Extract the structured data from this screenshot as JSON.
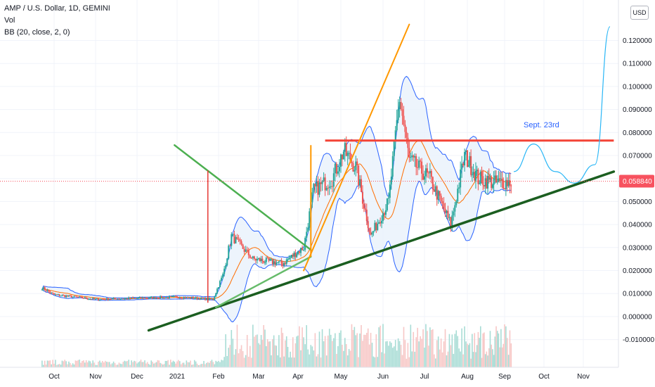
{
  "legend": {
    "symbol": "AMP / U.S. Dollar, 1D, GEMINI",
    "vol": "Vol",
    "bb": "BB (20, close, 2, 0)"
  },
  "scale_button": "USD",
  "current_price": "0.058840",
  "colors": {
    "up": "#26a69a",
    "down": "#ef5350",
    "bb_band": "#2962ff",
    "bb_basis": "#ff6d00",
    "bb_fill": "#e8f1fb",
    "red_line": "#f44336",
    "orange_line": "#ff9800",
    "green_line": "#4caf50",
    "dark_green": "#1b5e20",
    "projection": "#29b6f6",
    "price_tag": "#f7525f"
  },
  "chart_data": {
    "type": "candlestick",
    "y_ticks": [
      "0.120000",
      "0.110000",
      "0.100000",
      "0.090000",
      "0.080000",
      "0.070000",
      "0.060000",
      "0.050000",
      "0.040000",
      "0.030000",
      "0.020000",
      "0.010000",
      "0.000000",
      "-0.010000"
    ],
    "y_tick_values": [
      0.12,
      0.11,
      0.1,
      0.09,
      0.08,
      0.07,
      0.06,
      0.05,
      0.04,
      0.03,
      0.02,
      0.01,
      0.0,
      -0.01
    ],
    "x_ticks": [
      "Oct",
      "Nov",
      "Dec",
      "2021",
      "Feb",
      "Mar",
      "Apr",
      "May",
      "Jun",
      "Jul",
      "Aug",
      "Sep",
      "Oct",
      "Nov"
    ],
    "annotation": "Sept. 23rd",
    "ohlc_anchors": [
      {
        "date": "2020-09-22",
        "close": 0.0125
      },
      {
        "date": "2020-10-01",
        "close": 0.0095
      },
      {
        "date": "2020-11-01",
        "close": 0.0075
      },
      {
        "date": "2020-12-01",
        "close": 0.008
      },
      {
        "date": "2021-01-01",
        "close": 0.0085
      },
      {
        "date": "2021-01-28",
        "close": 0.0075
      },
      {
        "date": "2021-02-04",
        "close": 0.018
      },
      {
        "date": "2021-02-10",
        "close": 0.035
      },
      {
        "date": "2021-02-25",
        "close": 0.025
      },
      {
        "date": "2021-03-20",
        "close": 0.023
      },
      {
        "date": "2021-04-05",
        "close": 0.03
      },
      {
        "date": "2021-04-12",
        "close": 0.055
      },
      {
        "date": "2021-04-25",
        "close": 0.06
      },
      {
        "date": "2021-05-03",
        "close": 0.072
      },
      {
        "date": "2021-05-12",
        "close": 0.065
      },
      {
        "date": "2021-05-23",
        "close": 0.035
      },
      {
        "date": "2021-06-05",
        "close": 0.05
      },
      {
        "date": "2021-06-13",
        "close": 0.095
      },
      {
        "date": "2021-06-20",
        "close": 0.068
      },
      {
        "date": "2021-07-05",
        "close": 0.06
      },
      {
        "date": "2021-07-20",
        "close": 0.04
      },
      {
        "date": "2021-07-30",
        "close": 0.07
      },
      {
        "date": "2021-08-10",
        "close": 0.06
      },
      {
        "date": "2021-08-25",
        "close": 0.058
      },
      {
        "date": "2021-09-06",
        "close": 0.0588
      }
    ],
    "bollinger": {
      "period": 20,
      "source": "close",
      "mult": 2,
      "offset": 0
    },
    "horizontal_line": {
      "price": 0.0765,
      "from": "2021-04-20",
      "to": "2021-11-25"
    },
    "ascending_support": {
      "from": {
        "date": "2020-12-10",
        "price": -0.006
      },
      "to": {
        "date": "2021-11-25",
        "price": 0.063
      }
    },
    "descending_line": {
      "from": {
        "date": "2020-12-30",
        "price": 0.0745
      },
      "to": {
        "date": "2021-04-10",
        "price": 0.029
      }
    },
    "light_green_line": {
      "from": {
        "date": "2021-01-30",
        "price": 0.004
      },
      "to": {
        "date": "2021-04-10",
        "price": 0.026
      }
    },
    "orange_trend": {
      "from": {
        "date": "2021-04-05",
        "price": 0.02
      },
      "to": {
        "date": "2021-06-20",
        "price": 0.127
      }
    },
    "projection_path": [
      {
        "date": "2021-09-08",
        "price": 0.063
      },
      {
        "date": "2021-09-23",
        "price": 0.075
      },
      {
        "date": "2021-10-10",
        "price": 0.063
      },
      {
        "date": "2021-10-25",
        "price": 0.058
      },
      {
        "date": "2021-11-10",
        "price": 0.066
      },
      {
        "date": "2021-11-22",
        "price": 0.126
      }
    ]
  }
}
